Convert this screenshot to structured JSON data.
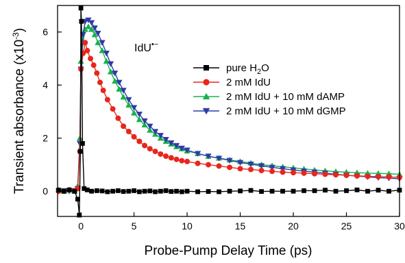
{
  "chart_data": {
    "type": "scatter",
    "xlabel": "Probe-Pump Delay Time (ps)",
    "ylabel": "Transient absorbance (x10",
    "ylabel_sup": "-3",
    "ylabel_close": ")",
    "annotation": {
      "base": "IdU",
      "sup": "•−"
    },
    "xlim": [
      -2.2,
      30
    ],
    "ylim": [
      -0.95,
      7.0
    ],
    "xticks": [
      0,
      5,
      10,
      15,
      20,
      25,
      30
    ],
    "xtick_labels": [
      "0",
      "5",
      "10",
      "15",
      "20",
      "25",
      "30"
    ],
    "yticks": [
      0,
      2,
      4,
      6
    ],
    "ytick_labels": [
      "0",
      "2",
      "4",
      "6"
    ],
    "grid": false,
    "legend_position": "upper-right",
    "series": [
      {
        "name": "pure H",
        "name_sub": "2",
        "name_tail": "O",
        "color": "#000000",
        "marker": "square",
        "points": [
          [
            -2.1,
            0.04
          ],
          [
            -1.6,
            0.0
          ],
          [
            -1.1,
            0.05
          ],
          [
            -0.6,
            0.0
          ],
          [
            -0.3,
            -0.3
          ],
          [
            -0.15,
            -0.9
          ],
          [
            -0.05,
            1.5
          ],
          [
            0.0,
            6.9
          ],
          [
            0.05,
            6.4
          ],
          [
            0.15,
            1.8
          ],
          [
            0.3,
            0.1
          ],
          [
            0.6,
            0.05
          ],
          [
            1.0,
            0.0
          ],
          [
            1.5,
            0.02
          ],
          [
            2.0,
            0.01
          ],
          [
            2.5,
            -0.02
          ],
          [
            3.0,
            0.0
          ],
          [
            3.5,
            0.02
          ],
          [
            4.0,
            -0.01
          ],
          [
            4.5,
            0.0
          ],
          [
            5.0,
            0.02
          ],
          [
            5.5,
            -0.02
          ],
          [
            6.0,
            0.0
          ],
          [
            6.5,
            0.01
          ],
          [
            7.0,
            -0.02
          ],
          [
            7.5,
            0.0
          ],
          [
            8.0,
            0.02
          ],
          [
            8.5,
            -0.01
          ],
          [
            9.0,
            0.0
          ],
          [
            9.5,
            -0.02
          ],
          [
            10.0,
            0.0
          ],
          [
            11.0,
            -0.02
          ],
          [
            12.0,
            -0.01
          ],
          [
            13.0,
            -0.02
          ],
          [
            14.0,
            0.0
          ],
          [
            15.0,
            0.01
          ],
          [
            16.0,
            0.03
          ],
          [
            17.0,
            -0.01
          ],
          [
            18.0,
            0.0
          ],
          [
            19.0,
            0.0
          ],
          [
            20.0,
            0.0
          ],
          [
            21.0,
            0.02
          ],
          [
            22.0,
            0.02
          ],
          [
            23.0,
            0.04
          ],
          [
            24.0,
            0.0
          ],
          [
            25.0,
            0.02
          ],
          [
            26.0,
            0.05
          ],
          [
            27.0,
            0.0
          ],
          [
            28.0,
            0.04
          ],
          [
            29.0,
            0.0
          ],
          [
            30.0,
            0.04
          ]
        ]
      },
      {
        "name": "2 mM IdU",
        "color": "#e8261c",
        "marker": "circle",
        "points": [
          [
            -2.1,
            0.0
          ],
          [
            -1.6,
            0.0
          ],
          [
            -1.1,
            0.05
          ],
          [
            -0.6,
            0.02
          ],
          [
            -0.3,
            0.1
          ],
          [
            -0.1,
            1.5
          ],
          [
            0.0,
            4.6
          ],
          [
            0.2,
            5.2
          ],
          [
            0.4,
            5.6
          ],
          [
            0.6,
            5.3
          ],
          [
            0.9,
            5.0
          ],
          [
            1.2,
            4.75
          ],
          [
            1.5,
            4.45
          ],
          [
            1.8,
            4.1
          ],
          [
            2.1,
            3.8
          ],
          [
            2.5,
            3.45
          ],
          [
            3.0,
            3.1
          ],
          [
            3.5,
            2.75
          ],
          [
            4.0,
            2.45
          ],
          [
            4.5,
            2.25
          ],
          [
            5.0,
            2.05
          ],
          [
            5.5,
            1.88
          ],
          [
            6.0,
            1.72
          ],
          [
            6.5,
            1.6
          ],
          [
            7.0,
            1.5
          ],
          [
            7.5,
            1.4
          ],
          [
            8.0,
            1.32
          ],
          [
            8.5,
            1.26
          ],
          [
            9.0,
            1.2
          ],
          [
            9.5,
            1.15
          ],
          [
            10.0,
            1.12
          ],
          [
            11.0,
            1.05
          ],
          [
            12.0,
            1.0
          ],
          [
            13.0,
            0.95
          ],
          [
            14.0,
            0.9
          ],
          [
            15.0,
            0.85
          ],
          [
            16.0,
            0.82
          ],
          [
            17.0,
            0.78
          ],
          [
            18.0,
            0.75
          ],
          [
            19.0,
            0.72
          ],
          [
            20.0,
            0.7
          ],
          [
            21.0,
            0.68
          ],
          [
            22.0,
            0.66
          ],
          [
            23.0,
            0.64
          ],
          [
            24.0,
            0.62
          ],
          [
            25.0,
            0.6
          ],
          [
            26.0,
            0.58
          ],
          [
            27.0,
            0.56
          ],
          [
            28.0,
            0.55
          ],
          [
            29.0,
            0.54
          ],
          [
            30.0,
            0.52
          ]
        ]
      },
      {
        "name": "2 mM IdU + 10 mM dAMP",
        "color": "#16b24a",
        "marker": "triangle-up",
        "points": [
          [
            -2.1,
            0.05
          ],
          [
            -1.6,
            0.0
          ],
          [
            -1.1,
            0.05
          ],
          [
            -0.6,
            0.0
          ],
          [
            -0.3,
            0.2
          ],
          [
            -0.1,
            2.0
          ],
          [
            0.0,
            4.9
          ],
          [
            0.2,
            5.6
          ],
          [
            0.4,
            6.1
          ],
          [
            0.7,
            6.2
          ],
          [
            1.0,
            6.1
          ],
          [
            1.3,
            5.9
          ],
          [
            1.6,
            5.6
          ],
          [
            2.0,
            5.3
          ],
          [
            2.4,
            4.9
          ],
          [
            2.8,
            4.5
          ],
          [
            3.2,
            4.15
          ],
          [
            3.6,
            3.85
          ],
          [
            4.0,
            3.55
          ],
          [
            4.5,
            3.25
          ],
          [
            5.0,
            2.95
          ],
          [
            5.5,
            2.7
          ],
          [
            6.0,
            2.5
          ],
          [
            6.5,
            2.3
          ],
          [
            7.0,
            2.15
          ],
          [
            7.5,
            2.0
          ],
          [
            8.0,
            1.88
          ],
          [
            8.5,
            1.78
          ],
          [
            9.0,
            1.68
          ],
          [
            9.5,
            1.6
          ],
          [
            10.0,
            1.52
          ],
          [
            11.0,
            1.42
          ],
          [
            12.0,
            1.32
          ],
          [
            13.0,
            1.25
          ],
          [
            14.0,
            1.18
          ],
          [
            15.0,
            1.12
          ],
          [
            16.0,
            1.06
          ],
          [
            17.0,
            1.0
          ],
          [
            18.0,
            0.96
          ],
          [
            19.0,
            0.92
          ],
          [
            20.0,
            0.88
          ],
          [
            21.0,
            0.84
          ],
          [
            22.0,
            0.8
          ],
          [
            23.0,
            0.77
          ],
          [
            24.0,
            0.74
          ],
          [
            25.0,
            0.72
          ],
          [
            26.0,
            0.7
          ],
          [
            27.0,
            0.68
          ],
          [
            28.0,
            0.67
          ],
          [
            29.0,
            0.66
          ],
          [
            30.0,
            0.64
          ]
        ]
      },
      {
        "name": "2 mM IdU + 10 mM dGMP",
        "color": "#2f3aa8",
        "marker": "triangle-down",
        "points": [
          [
            -2.1,
            0.0
          ],
          [
            -1.6,
            0.02
          ],
          [
            -1.1,
            0.0
          ],
          [
            -0.6,
            0.02
          ],
          [
            -0.3,
            0.1
          ],
          [
            -0.1,
            1.8
          ],
          [
            0.0,
            4.6
          ],
          [
            0.2,
            5.9
          ],
          [
            0.4,
            6.4
          ],
          [
            0.7,
            6.45
          ],
          [
            1.0,
            6.35
          ],
          [
            1.3,
            6.15
          ],
          [
            1.6,
            5.95
          ],
          [
            2.0,
            5.6
          ],
          [
            2.4,
            5.2
          ],
          [
            2.8,
            4.8
          ],
          [
            3.2,
            4.45
          ],
          [
            3.6,
            4.1
          ],
          [
            4.0,
            3.8
          ],
          [
            4.5,
            3.45
          ],
          [
            5.0,
            3.15
          ],
          [
            5.5,
            2.9
          ],
          [
            6.0,
            2.65
          ],
          [
            6.5,
            2.45
          ],
          [
            7.0,
            2.25
          ],
          [
            7.5,
            2.1
          ],
          [
            8.0,
            1.95
          ],
          [
            8.5,
            1.82
          ],
          [
            9.0,
            1.72
          ],
          [
            9.5,
            1.62
          ],
          [
            10.0,
            1.55
          ],
          [
            11.0,
            1.42
          ],
          [
            12.0,
            1.32
          ],
          [
            13.0,
            1.24
          ],
          [
            14.0,
            1.16
          ],
          [
            15.0,
            1.08
          ],
          [
            16.0,
            1.02
          ],
          [
            17.0,
            0.96
          ],
          [
            18.0,
            0.9
          ],
          [
            19.0,
            0.85
          ],
          [
            20.0,
            0.8
          ],
          [
            21.0,
            0.76
          ],
          [
            22.0,
            0.72
          ],
          [
            23.0,
            0.68
          ],
          [
            24.0,
            0.64
          ],
          [
            25.0,
            0.6
          ],
          [
            26.0,
            0.57
          ],
          [
            27.0,
            0.54
          ],
          [
            28.0,
            0.51
          ],
          [
            29.0,
            0.49
          ],
          [
            30.0,
            0.47
          ]
        ]
      }
    ]
  }
}
